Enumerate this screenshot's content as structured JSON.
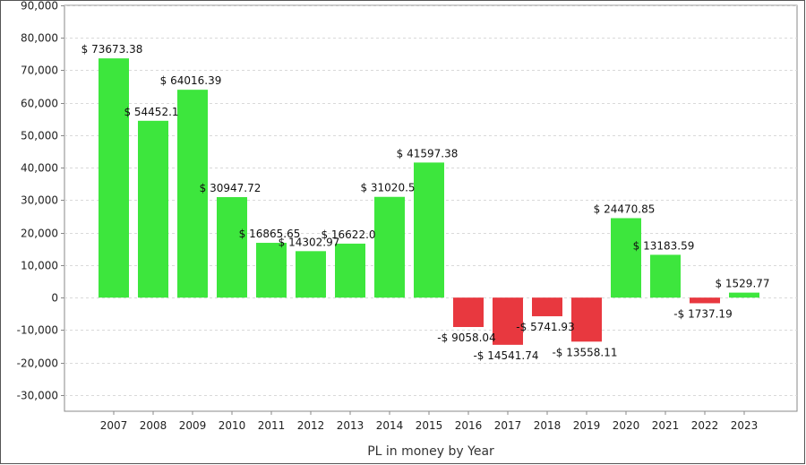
{
  "chart_data": {
    "type": "bar",
    "title": "",
    "xlabel": "PL in money by Year",
    "ylabel": "",
    "ylim": [
      -35000,
      90000
    ],
    "yticks": [
      -30000,
      -20000,
      -10000,
      0,
      10000,
      20000,
      30000,
      40000,
      50000,
      60000,
      70000,
      80000,
      90000
    ],
    "ytick_labels": [
      "-30,000",
      "-20,000",
      "-10,000",
      "0",
      "10,000",
      "20,000",
      "30,000",
      "40,000",
      "50,000",
      "60,000",
      "70,000",
      "80,000",
      "90,000"
    ],
    "grid": true,
    "categories": [
      "2007",
      "2008",
      "2009",
      "2010",
      "2011",
      "2012",
      "2013",
      "2014",
      "2015",
      "2016",
      "2017",
      "2018",
      "2019",
      "2020",
      "2021",
      "2022",
      "2023"
    ],
    "values": [
      73673.38,
      54452.1,
      64016.39,
      30947.72,
      16865.65,
      14302.97,
      16622.0,
      31020.5,
      41597.38,
      -9058.04,
      -14541.74,
      -5741.93,
      -13558.11,
      24470.85,
      13183.59,
      -1737.19,
      1529.77
    ],
    "data_labels": [
      "$ 73673.38",
      "$ 54452.1",
      "$ 64016.39",
      "$ 30947.72",
      "$ 16865.65",
      "$ 14302.97",
      "$ 16622.0",
      "$ 31020.5",
      "$ 41597.38",
      "-$ 9058.04",
      "-$ 14541.74",
      "-$ 5741.93",
      "-$ 13558.11",
      "$ 24470.85",
      "$ 13183.59",
      "-$ 1737.19",
      "$ 1529.77"
    ],
    "colors": {
      "positive": "#3de63d",
      "negative": "#e8383f",
      "grid": "#d9d9d9",
      "axis": "#888888"
    }
  }
}
